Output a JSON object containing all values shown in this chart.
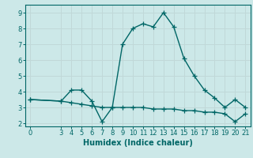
{
  "title": "",
  "xlabel": "Humidex (Indice chaleur)",
  "ylabel": "",
  "background_color": "#cce8e8",
  "grid_color": "#c0d8d8",
  "line_color": "#006666",
  "series1_x": [
    0,
    3,
    4,
    5,
    6,
    7,
    8,
    9,
    10,
    11,
    12,
    13,
    14,
    15,
    16,
    17,
    18,
    19,
    20,
    21
  ],
  "series1_y": [
    3.5,
    3.4,
    4.1,
    4.1,
    3.4,
    2.1,
    3.0,
    7.0,
    8.0,
    8.3,
    8.1,
    9.0,
    8.1,
    6.1,
    5.0,
    4.1,
    3.6,
    3.0,
    3.5,
    3.0
  ],
  "series2_x": [
    0,
    3,
    4,
    5,
    6,
    7,
    8,
    9,
    10,
    11,
    12,
    13,
    14,
    15,
    16,
    17,
    18,
    19,
    20,
    21
  ],
  "series2_y": [
    3.5,
    3.4,
    3.3,
    3.2,
    3.1,
    3.0,
    3.0,
    3.0,
    3.0,
    3.0,
    2.9,
    2.9,
    2.9,
    2.8,
    2.8,
    2.7,
    2.7,
    2.6,
    2.1,
    2.6
  ],
  "xlim": [
    -0.5,
    21.5
  ],
  "ylim": [
    1.8,
    9.5
  ],
  "yticks": [
    2,
    3,
    4,
    5,
    6,
    7,
    8,
    9
  ],
  "xticks": [
    0,
    3,
    4,
    5,
    6,
    7,
    8,
    9,
    10,
    11,
    12,
    13,
    14,
    15,
    16,
    17,
    18,
    19,
    20,
    21
  ],
  "marker": "+",
  "markersize": 4,
  "linewidth": 1.0,
  "axis_fontsize": 7,
  "tick_fontsize": 6
}
